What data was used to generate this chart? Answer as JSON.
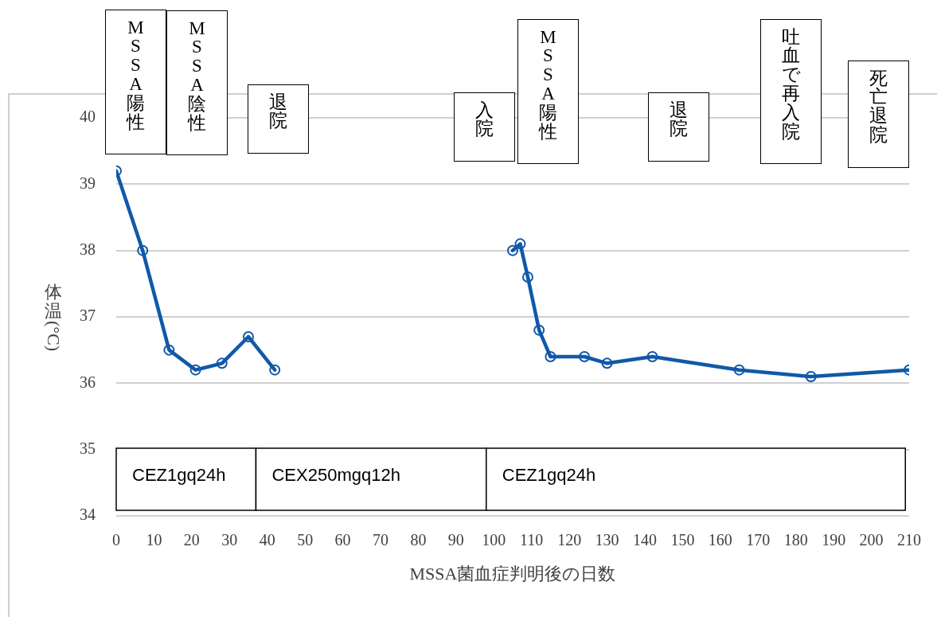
{
  "chart_data": {
    "type": "line",
    "xlabel": "MSSA菌血症判明後の日数",
    "ylabel": "体温(°C)",
    "series": [
      {
        "color": "#1059a8",
        "x": [
          0,
          7,
          14,
          21,
          28,
          35,
          42
        ],
        "values": [
          39.2,
          38.0,
          36.5,
          36.2,
          36.3,
          36.7,
          36.2
        ]
      },
      {
        "color": "#1059a8",
        "x": [
          105,
          107,
          109,
          112,
          115,
          124,
          130,
          142,
          165,
          184,
          210
        ],
        "values": [
          38.0,
          38.1,
          37.6,
          36.8,
          36.4,
          36.4,
          36.3,
          36.4,
          36.2,
          36.1,
          36.2
        ]
      }
    ],
    "xlim": [
      0,
      210
    ],
    "xticks": [
      0,
      10,
      20,
      30,
      40,
      50,
      60,
      70,
      80,
      90,
      100,
      110,
      120,
      130,
      140,
      150,
      160,
      170,
      180,
      190,
      200,
      210
    ],
    "ylim": [
      34,
      40
    ],
    "yticks": [
      34,
      35,
      36,
      37,
      38,
      39,
      40
    ],
    "grid": "y",
    "legend": false,
    "marker": "circle",
    "line_style": "solid",
    "bands": [
      {
        "axis": "x",
        "from": 0,
        "to": 37,
        "label": "CEZ1gq24h"
      },
      {
        "axis": "x",
        "from": 37,
        "to": 98,
        "label": "CEX250mgq12h"
      },
      {
        "axis": "x",
        "from": 98,
        "to": 209,
        "label": "CEZ1gq24h"
      }
    ],
    "annotations": [
      "MSSA陽性",
      "MSSA陰性",
      "退院",
      "入院",
      "MSSA陽性",
      "退院",
      "吐血で再入院",
      "死亡退院"
    ]
  }
}
